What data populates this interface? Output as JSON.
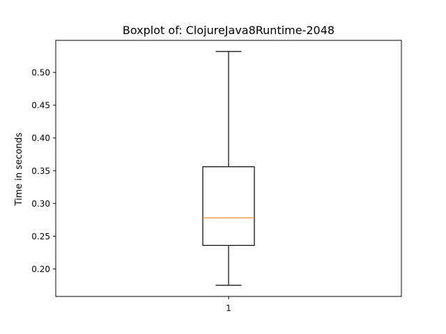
{
  "chart_data": {
    "type": "boxplot",
    "title": "Boxplot of: ClojureJava8Runtime-2048",
    "xlabel": "",
    "ylabel": "Time in seconds",
    "categories": [
      "1"
    ],
    "boxes": [
      {
        "category": "1",
        "whisker_low": 0.175,
        "q1": 0.236,
        "median": 0.278,
        "q3": 0.356,
        "whisker_high": 0.532
      }
    ],
    "ylim": [
      0.158,
      0.549
    ],
    "yticks": [
      "0.20",
      "0.25",
      "0.30",
      "0.35",
      "0.40",
      "0.45",
      "0.50"
    ],
    "grid": false,
    "colors": {
      "box": "#000000",
      "median": "#ff7f0e"
    }
  }
}
